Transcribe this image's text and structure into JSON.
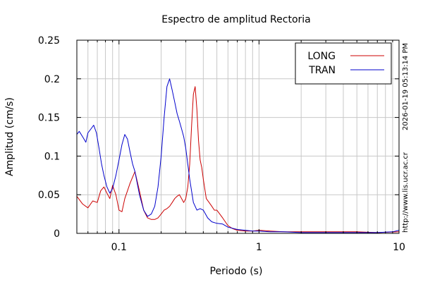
{
  "chart_data": {
    "type": "line",
    "title": "Espectro de amplitud Rectoria",
    "xlabel": "Periodo (s)",
    "ylabel": "Amplitud (cm/s)",
    "xscale": "log",
    "xlim": [
      0.05,
      10
    ],
    "ylim": [
      0,
      0.25
    ],
    "xticks": [
      {
        "value": 0.1,
        "label": "0.1"
      },
      {
        "value": 1,
        "label": "1"
      },
      {
        "value": 10,
        "label": "10"
      }
    ],
    "yticks": [
      {
        "value": 0,
        "label": "0"
      },
      {
        "value": 0.05,
        "label": "0.05"
      },
      {
        "value": 0.1,
        "label": "0.1"
      },
      {
        "value": 0.15,
        "label": "0.15"
      },
      {
        "value": 0.2,
        "label": "0.2"
      },
      {
        "value": 0.25,
        "label": "0.25"
      }
    ],
    "grid": true,
    "legend_position": "top-right",
    "timestamp": "2026-01-19 05:13:14 PM",
    "url": "http://www.lis.ucr.ac.cr",
    "series": [
      {
        "name": "LONG",
        "color": "#cc0000",
        "x": [
          0.05,
          0.055,
          0.06,
          0.065,
          0.07,
          0.074,
          0.078,
          0.082,
          0.086,
          0.09,
          0.095,
          0.1,
          0.105,
          0.11,
          0.115,
          0.12,
          0.13,
          0.14,
          0.15,
          0.16,
          0.17,
          0.18,
          0.19,
          0.2,
          0.21,
          0.22,
          0.23,
          0.24,
          0.25,
          0.26,
          0.27,
          0.28,
          0.29,
          0.3,
          0.31,
          0.32,
          0.33,
          0.34,
          0.35,
          0.36,
          0.37,
          0.38,
          0.39,
          0.4,
          0.42,
          0.44,
          0.46,
          0.48,
          0.5,
          0.55,
          0.6,
          0.65,
          0.7,
          0.8,
          0.9,
          1.0,
          1.2,
          1.5,
          2.0,
          3.0,
          5.0,
          7.0,
          10.0
        ],
        "y": [
          0.048,
          0.038,
          0.033,
          0.042,
          0.04,
          0.055,
          0.06,
          0.052,
          0.045,
          0.062,
          0.05,
          0.03,
          0.028,
          0.045,
          0.055,
          0.065,
          0.08,
          0.055,
          0.03,
          0.02,
          0.018,
          0.018,
          0.02,
          0.025,
          0.03,
          0.032,
          0.035,
          0.04,
          0.045,
          0.048,
          0.05,
          0.045,
          0.04,
          0.045,
          0.06,
          0.09,
          0.14,
          0.18,
          0.19,
          0.16,
          0.12,
          0.095,
          0.085,
          0.07,
          0.045,
          0.04,
          0.035,
          0.03,
          0.03,
          0.02,
          0.01,
          0.006,
          0.004,
          0.003,
          0.003,
          0.004,
          0.003,
          0.002,
          0.002,
          0.002,
          0.002,
          0.001,
          0.002
        ]
      },
      {
        "name": "TRAN",
        "color": "#0000cc",
        "x": [
          0.05,
          0.052,
          0.055,
          0.058,
          0.06,
          0.063,
          0.066,
          0.069,
          0.072,
          0.075,
          0.078,
          0.082,
          0.086,
          0.09,
          0.095,
          0.1,
          0.105,
          0.11,
          0.115,
          0.12,
          0.125,
          0.13,
          0.14,
          0.15,
          0.16,
          0.17,
          0.18,
          0.19,
          0.2,
          0.21,
          0.22,
          0.23,
          0.24,
          0.25,
          0.26,
          0.27,
          0.28,
          0.29,
          0.3,
          0.32,
          0.34,
          0.36,
          0.38,
          0.4,
          0.43,
          0.46,
          0.5,
          0.55,
          0.6,
          0.7,
          0.8,
          0.9,
          1.0,
          1.2,
          1.5,
          2.0,
          3.0,
          5.0,
          7.0,
          9.0,
          10.0
        ],
        "y": [
          0.128,
          0.132,
          0.125,
          0.118,
          0.13,
          0.135,
          0.14,
          0.13,
          0.11,
          0.09,
          0.075,
          0.06,
          0.052,
          0.058,
          0.075,
          0.095,
          0.115,
          0.128,
          0.122,
          0.105,
          0.09,
          0.08,
          0.05,
          0.03,
          0.022,
          0.025,
          0.035,
          0.06,
          0.1,
          0.15,
          0.19,
          0.2,
          0.185,
          0.17,
          0.155,
          0.145,
          0.135,
          0.125,
          0.11,
          0.07,
          0.04,
          0.03,
          0.032,
          0.03,
          0.02,
          0.015,
          0.013,
          0.012,
          0.008,
          0.005,
          0.004,
          0.003,
          0.003,
          0.002,
          0.002,
          0.001,
          0.001,
          0.001,
          0.001,
          0.002,
          0.004
        ]
      }
    ]
  }
}
